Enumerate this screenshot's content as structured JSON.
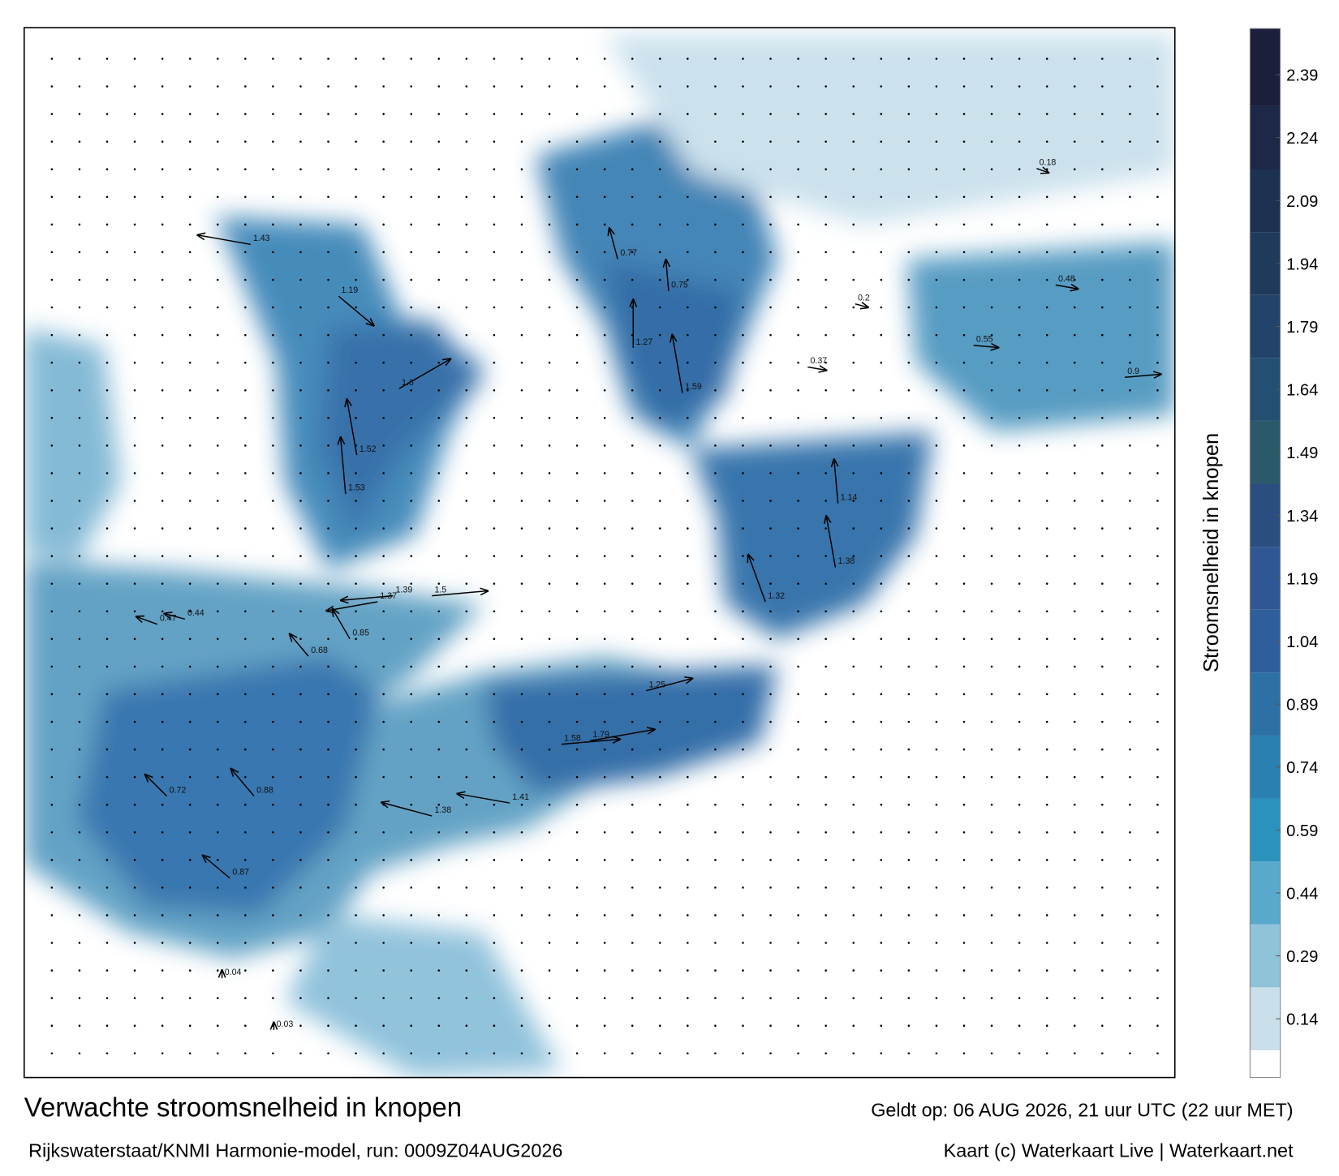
{
  "title": "Verwachte stroomsnelheid in knopen",
  "subtitle": "Rijkswaterstaat/KNMI Harmonie-model, run: 0009Z04AUG2026",
  "valid_time": "Geldt op: 06 AUG 2026, 21 uur UTC (22 uur MET)",
  "credit": "Kaart (c) Waterkaart Live | Waterkaart.net",
  "colorbar": {
    "label": "Stroomsnelheid in knopen",
    "lim": [
      0,
      2.5
    ],
    "ticks": [
      0.14,
      0.29,
      0.44,
      0.59,
      0.74,
      0.89,
      1.04,
      1.19,
      1.34,
      1.49,
      1.64,
      1.79,
      1.94,
      2.09,
      2.24,
      2.39
    ]
  },
  "readings": [
    1.43,
    1.19,
    1.6,
    1.52,
    1.53,
    1.37,
    1.39,
    1.5,
    0.85,
    0.68,
    0.47,
    0.44,
    0.72,
    0.88,
    0.87,
    1.38,
    1.41,
    1.58,
    1.79,
    1.25,
    1.14,
    1.38,
    1.32,
    1.27,
    1.59,
    0.77,
    0.75,
    0.55,
    0.48,
    0.9,
    0.37,
    0.2,
    0.18,
    0.04,
    0.03
  ]
}
